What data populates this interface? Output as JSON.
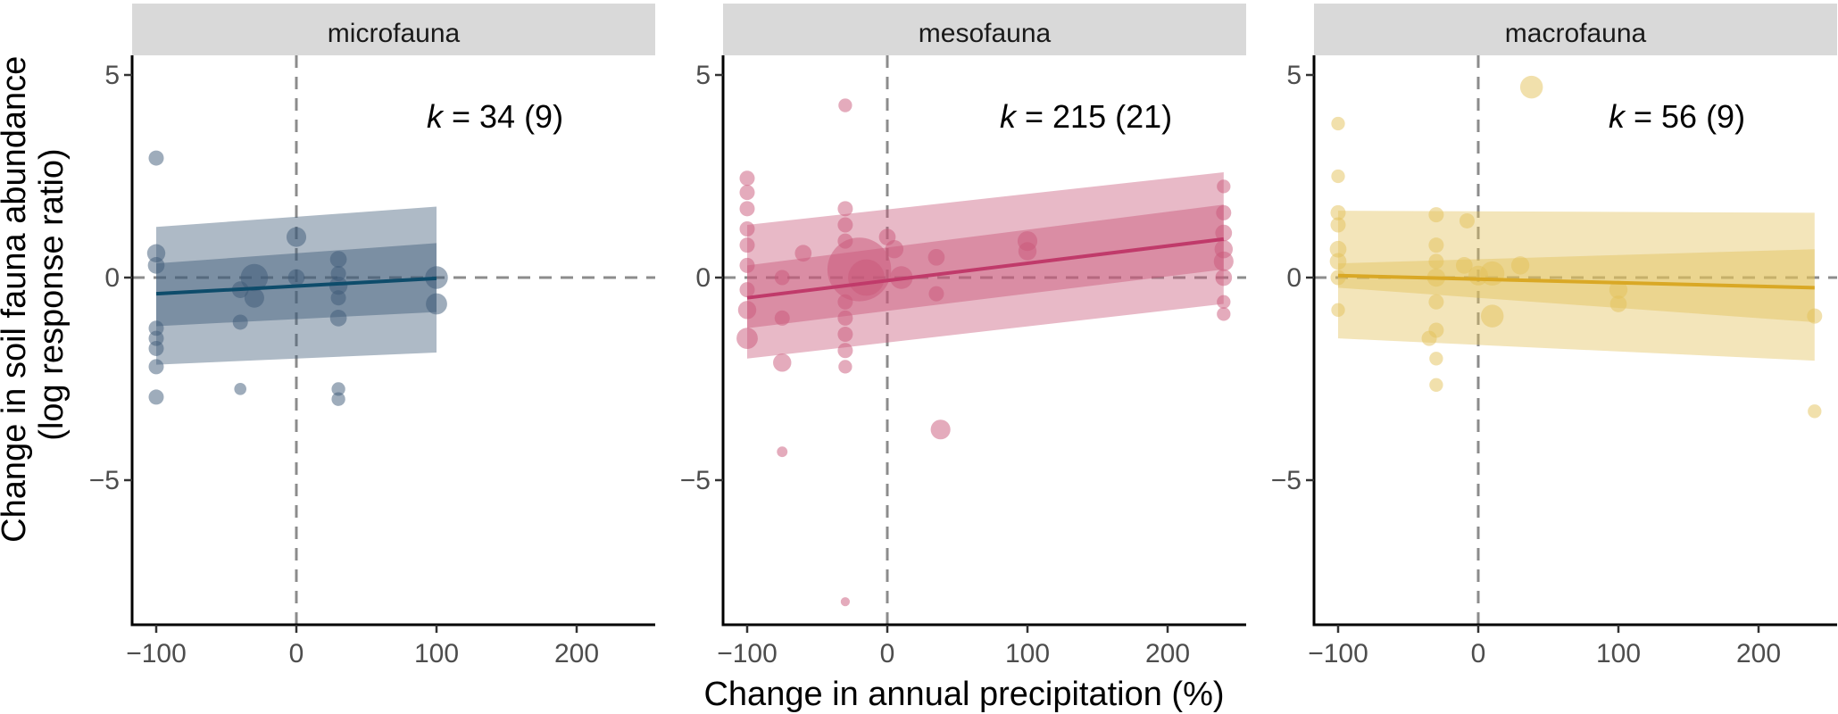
{
  "chart_data": {
    "type": "scatter",
    "xlabel": "Change in annual precipitation (%)",
    "ylabel_lines": [
      "Change in soil fauna abundance",
      "(log response ratio)"
    ],
    "xlim": [
      -110,
      255
    ],
    "ylim": [
      -8.6,
      5.3
    ],
    "x_ticks": [
      -100,
      0,
      100,
      200
    ],
    "x_tick_labels": [
      "−100",
      "0",
      "100",
      "200"
    ],
    "y_ticks": [
      5,
      0,
      -5
    ],
    "y_tick_labels": [
      "5",
      "0",
      "−5"
    ],
    "reference_lines": {
      "x": 0,
      "y": 0
    },
    "grid": false,
    "panels": [
      {
        "name": "microfauna",
        "k_prefix": "k",
        "k_value": " = 34 (9)",
        "color": "#3d5a78",
        "line_color": "#0e4c6b",
        "fit": {
          "x": [
            -100,
            100
          ],
          "y": [
            -0.4,
            -0.02
          ]
        },
        "ci_outer": {
          "x": [
            -100,
            100
          ],
          "lower": [
            -2.15,
            -1.85
          ],
          "upper": [
            1.25,
            1.75
          ]
        },
        "ci_inner": {
          "x": [
            -100,
            100
          ],
          "lower": [
            -1.2,
            -0.85
          ],
          "upper": [
            0.35,
            0.85
          ]
        },
        "points": [
          {
            "x": -100,
            "y": 2.95,
            "size": 1
          },
          {
            "x": -100,
            "y": 0.6,
            "size": 1.2
          },
          {
            "x": -100,
            "y": 0.3,
            "size": 1.1
          },
          {
            "x": -100,
            "y": -1.25,
            "size": 1
          },
          {
            "x": -100,
            "y": -1.5,
            "size": 1
          },
          {
            "x": -100,
            "y": -1.75,
            "size": 1
          },
          {
            "x": -100,
            "y": -2.2,
            "size": 1
          },
          {
            "x": -100,
            "y": -2.95,
            "size": 1
          },
          {
            "x": -40,
            "y": -2.75,
            "size": 0.8
          },
          {
            "x": -40,
            "y": -1.1,
            "size": 1
          },
          {
            "x": -40,
            "y": -0.3,
            "size": 1.1
          },
          {
            "x": -30,
            "y": 0.0,
            "size": 1.8
          },
          {
            "x": -30,
            "y": -0.5,
            "size": 1.3
          },
          {
            "x": 0,
            "y": 1.0,
            "size": 1.3
          },
          {
            "x": 0,
            "y": 0.0,
            "size": 1.1
          },
          {
            "x": 30,
            "y": 0.45,
            "size": 1.1
          },
          {
            "x": 30,
            "y": 0.1,
            "size": 1
          },
          {
            "x": 30,
            "y": -0.2,
            "size": 1.2
          },
          {
            "x": 30,
            "y": -0.5,
            "size": 1
          },
          {
            "x": 30,
            "y": -1.0,
            "size": 1.1
          },
          {
            "x": 30,
            "y": -2.75,
            "size": 0.9
          },
          {
            "x": 30,
            "y": -3.0,
            "size": 0.9
          },
          {
            "x": 100,
            "y": 0.0,
            "size": 1.5
          },
          {
            "x": 100,
            "y": -0.65,
            "size": 1.4
          }
        ]
      },
      {
        "name": "mesofauna",
        "k_prefix": "k",
        "k_value": " = 215 (21)",
        "color": "#c9587a",
        "line_color": "#c03a6a",
        "fit": {
          "x": [
            -100,
            240
          ],
          "y": [
            -0.5,
            0.95
          ]
        },
        "ci_outer": {
          "x": [
            -100,
            240
          ],
          "lower": [
            -2.0,
            -0.65
          ],
          "upper": [
            1.3,
            2.6
          ]
        },
        "ci_inner": {
          "x": [
            -100,
            240
          ],
          "lower": [
            -1.25,
            0.2
          ],
          "upper": [
            0.3,
            1.8
          ]
        },
        "points": [
          {
            "x": -100,
            "y": 2.45,
            "size": 1
          },
          {
            "x": -100,
            "y": 2.1,
            "size": 1
          },
          {
            "x": -100,
            "y": 1.7,
            "size": 1
          },
          {
            "x": -100,
            "y": 1.2,
            "size": 1
          },
          {
            "x": -100,
            "y": 0.8,
            "size": 1
          },
          {
            "x": -100,
            "y": 0.3,
            "size": 1
          },
          {
            "x": -100,
            "y": -0.3,
            "size": 1
          },
          {
            "x": -100,
            "y": -0.8,
            "size": 1.2
          },
          {
            "x": -100,
            "y": -1.5,
            "size": 1.4
          },
          {
            "x": -75,
            "y": -4.3,
            "size": 0.7
          },
          {
            "x": -75,
            "y": -2.1,
            "size": 1.2
          },
          {
            "x": -75,
            "y": -1.0,
            "size": 1
          },
          {
            "x": -75,
            "y": 0.0,
            "size": 1
          },
          {
            "x": -60,
            "y": 0.6,
            "size": 1.1
          },
          {
            "x": -30,
            "y": 4.25,
            "size": 0.9
          },
          {
            "x": -30,
            "y": 1.7,
            "size": 1
          },
          {
            "x": -30,
            "y": 1.3,
            "size": 1
          },
          {
            "x": -30,
            "y": 0.9,
            "size": 1
          },
          {
            "x": -30,
            "y": -0.6,
            "size": 1
          },
          {
            "x": -30,
            "y": -1.0,
            "size": 1
          },
          {
            "x": -30,
            "y": -1.4,
            "size": 1
          },
          {
            "x": -30,
            "y": -1.8,
            "size": 1
          },
          {
            "x": -30,
            "y": -2.2,
            "size": 0.9
          },
          {
            "x": -30,
            "y": -8.0,
            "size": 0.6
          },
          {
            "x": -20,
            "y": 0.2,
            "size": 4.2
          },
          {
            "x": -15,
            "y": 0.0,
            "size": 2.4
          },
          {
            "x": 0,
            "y": 1.0,
            "size": 1.1
          },
          {
            "x": 5,
            "y": 0.7,
            "size": 1.2
          },
          {
            "x": 10,
            "y": 0.0,
            "size": 1.5
          },
          {
            "x": 35,
            "y": 0.5,
            "size": 1.1
          },
          {
            "x": 35,
            "y": -0.4,
            "size": 1
          },
          {
            "x": 38,
            "y": -3.75,
            "size": 1.3
          },
          {
            "x": 100,
            "y": 0.9,
            "size": 1.3
          },
          {
            "x": 100,
            "y": 0.65,
            "size": 1.2
          },
          {
            "x": 240,
            "y": 2.25,
            "size": 0.9
          },
          {
            "x": 240,
            "y": 1.6,
            "size": 1
          },
          {
            "x": 240,
            "y": 1.1,
            "size": 1.1
          },
          {
            "x": 240,
            "y": 0.7,
            "size": 1.2
          },
          {
            "x": 240,
            "y": 0.4,
            "size": 1.3
          },
          {
            "x": 240,
            "y": 0.0,
            "size": 1.1
          },
          {
            "x": 240,
            "y": -0.6,
            "size": 0.9
          },
          {
            "x": 240,
            "y": -0.9,
            "size": 0.9
          }
        ]
      },
      {
        "name": "macrofauna",
        "k_prefix": "k",
        "k_value": " = 56 (9)",
        "color": "#e3c25a",
        "line_color": "#d9a825",
        "fit": {
          "x": [
            -100,
            240
          ],
          "y": [
            0.05,
            -0.25
          ]
        },
        "ci_outer": {
          "x": [
            -100,
            240
          ],
          "lower": [
            -1.5,
            -2.05
          ],
          "upper": [
            1.65,
            1.6
          ]
        },
        "ci_inner": {
          "x": [
            -100,
            240
          ],
          "lower": [
            -0.25,
            -1.1
          ],
          "upper": [
            0.35,
            0.7
          ]
        },
        "points": [
          {
            "x": -100,
            "y": 3.8,
            "size": 0.9
          },
          {
            "x": -100,
            "y": 2.5,
            "size": 0.9
          },
          {
            "x": -100,
            "y": 1.6,
            "size": 1
          },
          {
            "x": -100,
            "y": 1.3,
            "size": 1
          },
          {
            "x": -100,
            "y": 0.7,
            "size": 1.1
          },
          {
            "x": -100,
            "y": 0.4,
            "size": 1.1
          },
          {
            "x": -100,
            "y": 0.0,
            "size": 1
          },
          {
            "x": -100,
            "y": -0.8,
            "size": 0.9
          },
          {
            "x": -30,
            "y": 1.55,
            "size": 1
          },
          {
            "x": -30,
            "y": 0.8,
            "size": 1
          },
          {
            "x": -30,
            "y": 0.4,
            "size": 1
          },
          {
            "x": -30,
            "y": 0.0,
            "size": 1.2
          },
          {
            "x": -30,
            "y": -0.6,
            "size": 1
          },
          {
            "x": -30,
            "y": -1.3,
            "size": 1
          },
          {
            "x": -30,
            "y": -2.0,
            "size": 0.9
          },
          {
            "x": -30,
            "y": -2.65,
            "size": 0.9
          },
          {
            "x": -35,
            "y": -1.5,
            "size": 1
          },
          {
            "x": -10,
            "y": 0.3,
            "size": 1.1
          },
          {
            "x": -8,
            "y": 1.4,
            "size": 1
          },
          {
            "x": 0,
            "y": 0.05,
            "size": 1.3
          },
          {
            "x": 10,
            "y": 0.1,
            "size": 1.6
          },
          {
            "x": 10,
            "y": -0.95,
            "size": 1.5
          },
          {
            "x": 30,
            "y": 0.3,
            "size": 1.2
          },
          {
            "x": 38,
            "y": 4.7,
            "size": 1.5
          },
          {
            "x": 100,
            "y": -0.3,
            "size": 1.2
          },
          {
            "x": 100,
            "y": -0.65,
            "size": 1.1
          },
          {
            "x": 240,
            "y": -0.95,
            "size": 1
          },
          {
            "x": 240,
            "y": -3.3,
            "size": 0.9
          }
        ]
      }
    ]
  }
}
